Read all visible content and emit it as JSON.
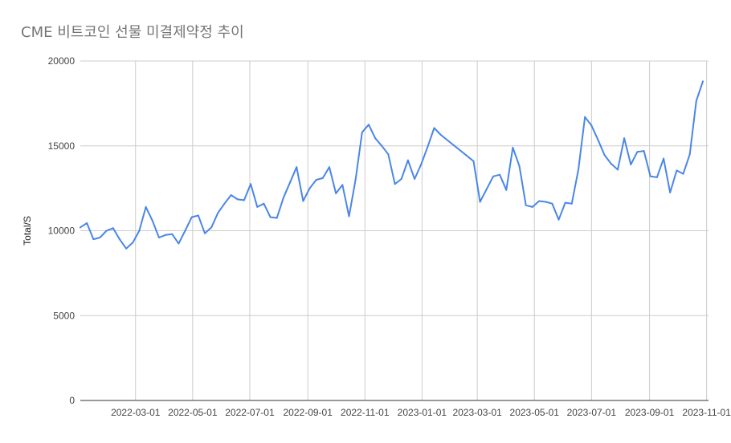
{
  "chart_data": {
    "type": "line",
    "title": "CME 비트코인 선물 미결제약정 추이",
    "xlabel": "",
    "ylabel": "Total/S",
    "ylim": [
      0,
      20000
    ],
    "yticks": [
      0,
      5000,
      10000,
      15000,
      20000
    ],
    "xlim": [
      "2022-01-01",
      "2023-11-03"
    ],
    "xticks": [
      "2022-03-01",
      "2022-05-01",
      "2022-07-01",
      "2022-09-01",
      "2022-11-01",
      "2023-01-01",
      "2023-03-01",
      "2023-05-01",
      "2023-07-01",
      "2023-09-01",
      "2023-11-01"
    ],
    "grid": true,
    "legend": "none",
    "colors": {
      "line": "#4a86e8",
      "grid": "#cccccc",
      "axis": "#333333",
      "title": "#757575"
    },
    "series": [
      {
        "x": [
          "2022-01-01",
          "2022-01-08",
          "2022-01-15",
          "2022-01-22",
          "2022-01-29",
          "2022-02-05",
          "2022-02-12",
          "2022-02-19",
          "2022-02-26",
          "2022-03-05",
          "2022-03-12",
          "2022-03-19",
          "2022-03-26",
          "2022-04-02",
          "2022-04-09",
          "2022-04-16",
          "2022-04-23",
          "2022-04-30",
          "2022-05-07",
          "2022-05-14",
          "2022-05-21",
          "2022-05-28",
          "2022-06-04",
          "2022-06-11",
          "2022-06-18",
          "2022-06-25",
          "2022-07-02",
          "2022-07-09",
          "2022-07-16",
          "2022-07-23",
          "2022-07-30",
          "2022-08-06",
          "2022-08-13",
          "2022-08-20",
          "2022-08-27",
          "2022-09-03",
          "2022-09-10",
          "2022-09-17",
          "2022-09-24",
          "2022-10-01",
          "2022-10-08",
          "2022-10-15",
          "2022-10-22",
          "2022-10-29",
          "2022-11-05",
          "2022-11-12",
          "2022-11-19",
          "2022-11-26",
          "2022-12-03",
          "2022-12-10",
          "2022-12-17",
          "2022-12-24",
          "2022-12-31",
          "2023-01-07",
          "2023-01-14",
          "2023-01-21",
          "2023-02-25",
          "2023-03-04",
          "2023-03-11",
          "2023-03-18",
          "2023-03-25",
          "2023-04-01",
          "2023-04-08",
          "2023-04-15",
          "2023-04-22",
          "2023-04-29",
          "2023-05-06",
          "2023-05-13",
          "2023-05-20",
          "2023-05-27",
          "2023-06-03",
          "2023-06-10",
          "2023-06-17",
          "2023-06-24",
          "2023-07-01",
          "2023-07-08",
          "2023-07-15",
          "2023-07-22",
          "2023-07-29",
          "2023-08-05",
          "2023-08-12",
          "2023-08-19",
          "2023-08-26",
          "2023-09-02",
          "2023-09-09",
          "2023-09-16",
          "2023-09-23",
          "2023-09-30",
          "2023-10-07",
          "2023-10-14",
          "2023-10-21",
          "2023-10-28"
        ],
        "values": [
          10200,
          10450,
          9500,
          9600,
          10000,
          10150,
          9500,
          8950,
          9300,
          10000,
          11400,
          10600,
          9600,
          9750,
          9800,
          9250,
          10000,
          10800,
          10900,
          9850,
          10200,
          11050,
          11600,
          12100,
          11850,
          11800,
          12750,
          11400,
          11600,
          10800,
          10750,
          11950,
          12850,
          13750,
          11750,
          12500,
          13000,
          13100,
          13750,
          12200,
          12700,
          10850,
          13000,
          15800,
          16250,
          15450,
          15000,
          14500,
          12750,
          13050,
          14150,
          13050,
          13900,
          14950,
          16050,
          15650,
          14100,
          11700,
          12450,
          13200,
          13300,
          12400,
          14900,
          13800,
          11500,
          11400,
          11750,
          11700,
          11600,
          10650,
          11650,
          11600,
          13600,
          16700,
          16200,
          15350,
          14450,
          13950,
          13600,
          15450,
          13900,
          14650,
          14700,
          13200,
          13150,
          14250,
          12250,
          13550,
          13350,
          14500,
          17650,
          18800
        ]
      }
    ]
  }
}
